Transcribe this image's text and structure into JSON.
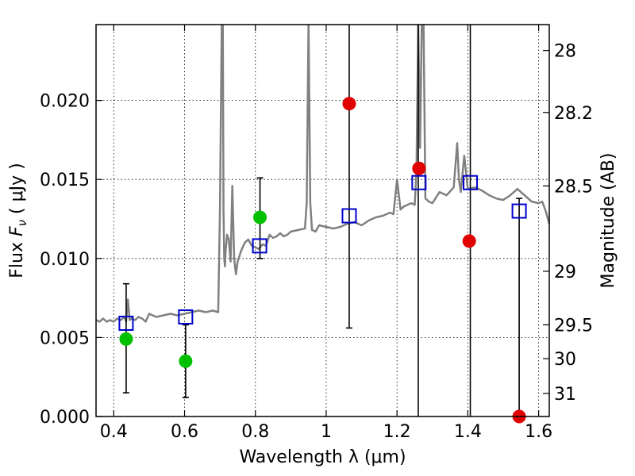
{
  "chart_data": {
    "type": "scatter",
    "xlabel": "Wavelength  λ (μm)",
    "ylabel": "Flux  F_ν  ( μJy )",
    "ylabel_right": "Magnitude (AB)",
    "xlim": [
      0.35,
      1.63
    ],
    "ylim": [
      0.0,
      0.0248
    ],
    "grid": true,
    "x_ticks": [
      0.4,
      0.6,
      0.8,
      1.0,
      1.2,
      1.4,
      1.6
    ],
    "x_tick_labels": [
      "0.4",
      "0.6",
      "0.8",
      "1",
      "1.2",
      "1.4",
      "1.6"
    ],
    "y_ticks": [
      0.0,
      0.005,
      0.01,
      0.015,
      0.02
    ],
    "y_tick_labels": [
      "0.000",
      "0.005",
      "0.010",
      "0.015",
      "0.020"
    ],
    "right_ticks": [
      {
        "label": "28",
        "flux": 0.02316
      },
      {
        "label": "28.2",
        "flux": 0.01924
      },
      {
        "label": "28.5",
        "flux": 0.01459
      },
      {
        "label": "29",
        "flux": 0.00919
      },
      {
        "label": "29.5",
        "flux": 0.0058
      },
      {
        "label": "30",
        "flux": 0.00366
      },
      {
        "label": "31",
        "flux": 0.00146
      }
    ],
    "series": [
      {
        "kind": "model-spectrum-line",
        "color": "#808080",
        "x": [
          0.35,
          0.36,
          0.37,
          0.38,
          0.39,
          0.4,
          0.41,
          0.42,
          0.43,
          0.435,
          0.44,
          0.445,
          0.45,
          0.46,
          0.47,
          0.48,
          0.49,
          0.5,
          0.52,
          0.54,
          0.56,
          0.58,
          0.6,
          0.62,
          0.64,
          0.66,
          0.68,
          0.695,
          0.7,
          0.705,
          0.708,
          0.71,
          0.712,
          0.714,
          0.716,
          0.72,
          0.725,
          0.73,
          0.735,
          0.74,
          0.745,
          0.75,
          0.76,
          0.77,
          0.78,
          0.79,
          0.8,
          0.81,
          0.82,
          0.83,
          0.84,
          0.85,
          0.86,
          0.87,
          0.88,
          0.89,
          0.9,
          0.92,
          0.94,
          0.945,
          0.95,
          0.955,
          0.96,
          0.97,
          0.98,
          1.0,
          1.02,
          1.04,
          1.06,
          1.08,
          1.1,
          1.12,
          1.14,
          1.16,
          1.18,
          1.19,
          1.2,
          1.21,
          1.22,
          1.24,
          1.25,
          1.255,
          1.26,
          1.265,
          1.27,
          1.275,
          1.28,
          1.285,
          1.29,
          1.3,
          1.32,
          1.34,
          1.36,
          1.37,
          1.375,
          1.38,
          1.39,
          1.4,
          1.42,
          1.44,
          1.46,
          1.48,
          1.5,
          1.52,
          1.54,
          1.56,
          1.58,
          1.6,
          1.61,
          1.62,
          1.63
        ],
        "y": [
          0.0061,
          0.006,
          0.0062,
          0.006,
          0.0061,
          0.006,
          0.0062,
          0.0061,
          0.0063,
          0.006,
          0.0074,
          0.0061,
          0.0062,
          0.0061,
          0.0063,
          0.0062,
          0.006,
          0.0065,
          0.0063,
          0.0064,
          0.0065,
          0.0064,
          0.0065,
          0.0066,
          0.0067,
          0.0066,
          0.0067,
          0.0066,
          0.013,
          0.025,
          0.025,
          0.013,
          0.01,
          0.0095,
          0.0105,
          0.0115,
          0.0112,
          0.0098,
          0.0146,
          0.01,
          0.009,
          0.0098,
          0.0105,
          0.011,
          0.0112,
          0.0108,
          0.0107,
          0.0106,
          0.0109,
          0.0108,
          0.0115,
          0.0113,
          0.0114,
          0.0116,
          0.0114,
          0.0115,
          0.0117,
          0.0118,
          0.0119,
          0.0135,
          0.025,
          0.0135,
          0.0118,
          0.0117,
          0.0121,
          0.012,
          0.0119,
          0.012,
          0.0122,
          0.0123,
          0.0121,
          0.0124,
          0.0126,
          0.0127,
          0.0129,
          0.0128,
          0.015,
          0.0131,
          0.0133,
          0.0135,
          0.0134,
          0.0155,
          0.025,
          0.017,
          0.025,
          0.025,
          0.0138,
          0.0137,
          0.0136,
          0.0135,
          0.0142,
          0.014,
          0.0145,
          0.0173,
          0.015,
          0.0142,
          0.0165,
          0.0144,
          0.0145,
          0.0143,
          0.014,
          0.0138,
          0.0137,
          0.014,
          0.0144,
          0.014,
          0.0136,
          0.0135,
          0.0136,
          0.013,
          0.0122
        ]
      },
      {
        "kind": "observed-green",
        "color": "#00c000",
        "x": [
          0.435,
          0.603,
          0.813
        ],
        "y": [
          0.0049,
          0.0035,
          0.0126
        ],
        "yerr_low": [
          0.0015,
          0.0012,
          0.01
        ],
        "yerr_high": [
          0.0084,
          0.0058,
          0.0151
        ],
        "errbar_x": [
          0.435,
          0.603,
          0.813
        ]
      },
      {
        "kind": "observed-red",
        "color": "#e00000",
        "x": [
          1.065,
          1.262,
          1.404,
          1.545
        ],
        "y": [
          0.0198,
          0.0157,
          0.0111,
          0.0
        ],
        "yerr_low": [
          0.0056,
          0.0,
          0.0,
          0.0
        ],
        "yerr_high": [
          0.0248,
          0.0248,
          0.0248,
          0.0138
        ],
        "errbar_x": [
          1.065,
          1.26,
          1.407,
          1.545
        ]
      },
      {
        "kind": "model-photometry",
        "color": "#0000cc",
        "x": [
          0.435,
          0.603,
          0.812,
          1.065,
          1.262,
          1.407,
          1.545
        ],
        "y": [
          0.0059,
          0.0063,
          0.0108,
          0.0127,
          0.0148,
          0.0148,
          0.013
        ]
      }
    ]
  }
}
